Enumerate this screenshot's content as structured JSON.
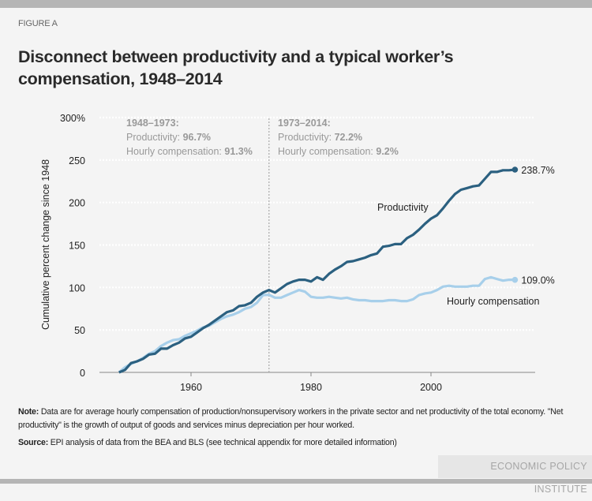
{
  "figure_label": "FIGURE A",
  "note": {
    "label": "Note:",
    "text": "Data are for average hourly compensation of production/nonsupervisory workers in the private sector and net productivity of the total economy. \"Net productivity\" is the growth of output of goods and services minus depreciation per hour worked."
  },
  "source": {
    "label": "Source:",
    "text": "EPI analysis of data from the BEA and BLS (see technical appendix for more detailed information)"
  },
  "publisher": "ECONOMIC POLICY INSTITUTE",
  "chart_data": {
    "type": "line",
    "title": "Disconnect between productivity and a typical worker’s compensation, 1948–2014",
    "ylabel": "Cumulative percent change since 1948",
    "xlabel": "",
    "xlim": [
      1945,
      2018
    ],
    "ylim": [
      0,
      300
    ],
    "xticks": [
      "1960",
      "1980",
      "2000"
    ],
    "xtick_values": [
      1960,
      1980,
      2000
    ],
    "yticks": [
      "0",
      "50",
      "100",
      "150",
      "200",
      "250",
      "300%"
    ],
    "ytick_values": [
      0,
      50,
      100,
      150,
      200,
      250,
      300
    ],
    "grid": "horizontal dotted",
    "divider_year": 1973,
    "colors": {
      "productivity": "#2b6080",
      "compensation": "#a7cfea",
      "annotation": "#999999"
    },
    "annotations": [
      {
        "heading": "1948–1973:",
        "prod_label": "Productivity: ",
        "prod_value": "96.7%",
        "comp_label": "Hourly compensation: ",
        "comp_value": "91.3%"
      },
      {
        "heading": "1973–2014:",
        "prod_label": "Productivity: ",
        "prod_value": "72.2%",
        "comp_label": "Hourly compensation: ",
        "comp_value": "9.2%"
      }
    ],
    "x": [
      1948,
      1949,
      1950,
      1951,
      1952,
      1953,
      1954,
      1955,
      1956,
      1957,
      1958,
      1959,
      1960,
      1961,
      1962,
      1963,
      1964,
      1965,
      1966,
      1967,
      1968,
      1969,
      1970,
      1971,
      1972,
      1973,
      1974,
      1975,
      1976,
      1977,
      1978,
      1979,
      1980,
      1981,
      1982,
      1983,
      1984,
      1985,
      1986,
      1987,
      1988,
      1989,
      1990,
      1991,
      1992,
      1993,
      1994,
      1995,
      1996,
      1997,
      1998,
      1999,
      2000,
      2001,
      2002,
      2003,
      2004,
      2005,
      2006,
      2007,
      2008,
      2009,
      2010,
      2011,
      2012,
      2013,
      2014
    ],
    "series": [
      {
        "name": "Productivity",
        "end_label": "238.7%",
        "values": [
          0,
          3,
          11,
          13,
          16,
          21,
          22,
          28,
          28,
          32,
          35,
          40,
          42,
          47,
          52,
          56,
          61,
          66,
          71,
          73,
          78,
          79,
          82,
          89,
          94,
          97,
          94,
          99,
          104,
          107,
          109,
          109,
          107,
          112,
          109,
          116,
          121,
          125,
          130,
          131,
          133,
          135,
          138,
          140,
          148,
          149,
          151,
          151,
          158,
          162,
          168,
          175,
          181,
          185,
          193,
          202,
          210,
          215,
          217,
          219,
          220,
          228,
          236,
          236,
          238,
          238,
          238.7
        ]
      },
      {
        "name": "Hourly compensation",
        "end_label": "109.0%",
        "values": [
          0,
          6,
          10,
          13,
          17,
          22,
          25,
          31,
          35,
          38,
          39,
          43,
          46,
          49,
          53,
          55,
          59,
          63,
          66,
          68,
          71,
          75,
          77,
          82,
          91,
          91.3,
          88,
          88,
          91,
          94,
          97,
          95,
          89,
          88,
          88,
          89,
          88,
          87,
          88,
          86,
          85,
          85,
          84,
          84,
          84,
          85,
          85,
          84,
          84,
          86,
          91,
          93,
          94,
          97,
          101,
          102,
          101,
          101,
          101,
          102,
          102,
          110,
          112,
          110,
          108,
          109,
          109.0
        ]
      }
    ]
  }
}
